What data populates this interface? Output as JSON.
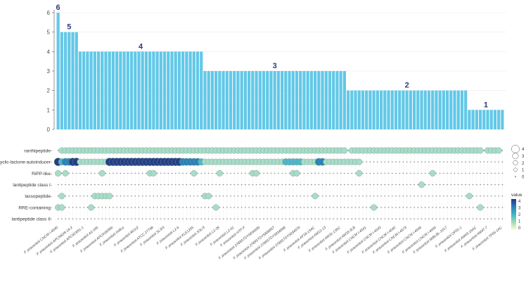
{
  "chart_data": [
    {
      "type": "bar",
      "ylim": [
        0,
        6
      ],
      "yticks": [
        "0",
        "1",
        "2",
        "3",
        "4",
        "5",
        "6"
      ],
      "counts": [
        6,
        5,
        5,
        5,
        5,
        5,
        4,
        4,
        4,
        4,
        4,
        4,
        4,
        4,
        4,
        4,
        4,
        4,
        4,
        4,
        4,
        4,
        4,
        4,
        4,
        4,
        4,
        4,
        4,
        4,
        4,
        4,
        4,
        4,
        4,
        4,
        4,
        4,
        4,
        4,
        3,
        3,
        3,
        3,
        3,
        3,
        3,
        3,
        3,
        3,
        3,
        3,
        3,
        3,
        3,
        3,
        3,
        3,
        3,
        3,
        3,
        3,
        3,
        3,
        3,
        3,
        3,
        3,
        3,
        3,
        3,
        3,
        3,
        3,
        3,
        3,
        3,
        3,
        3,
        2,
        2,
        2,
        2,
        2,
        2,
        2,
        2,
        2,
        2,
        2,
        2,
        2,
        2,
        2,
        2,
        2,
        2,
        2,
        2,
        2,
        2,
        2,
        2,
        2,
        2,
        2,
        2,
        2,
        2,
        2,
        2,
        2,
        1,
        1,
        1,
        1,
        1,
        1,
        1,
        1,
        1,
        1
      ],
      "group_labels": [
        {
          "text": "6",
          "value": 6,
          "first": 0,
          "last": 0
        },
        {
          "text": "5",
          "value": 5,
          "first": 1,
          "last": 5
        },
        {
          "text": "4",
          "value": 4,
          "first": 6,
          "last": 39
        },
        {
          "text": "3",
          "value": 3,
          "first": 40,
          "last": 78
        },
        {
          "text": "2",
          "value": 2,
          "first": 79,
          "last": 111
        },
        {
          "text": "1",
          "value": 1,
          "first": 112,
          "last": 121
        }
      ],
      "bar_color": "#62c8e8"
    },
    {
      "type": "heatmap",
      "rows": [
        "ranthipeptide",
        "cyclic-lactone-autoinducer",
        "RiPP-like",
        "lantipeptide class I",
        "lassopeptide",
        "RRE-containing",
        "lantipeptide class II"
      ],
      "cells": [
        [
          0,
          1,
          1,
          1,
          1,
          1,
          1,
          1,
          1,
          1,
          1,
          1,
          1,
          1,
          1,
          1,
          1,
          1,
          1,
          1,
          1,
          1,
          1,
          1,
          1,
          1,
          1,
          1,
          1,
          1,
          1,
          1,
          1,
          1,
          1,
          1,
          1,
          1,
          1,
          1,
          1,
          1,
          1,
          1,
          1,
          1,
          1,
          1,
          1,
          1,
          1,
          1,
          1,
          1,
          1,
          1,
          1,
          1,
          1,
          1,
          1,
          1,
          1,
          1,
          1,
          1,
          1,
          1,
          1,
          1,
          1,
          1,
          1,
          1,
          1,
          1,
          1,
          1,
          1,
          0,
          1,
          1,
          1,
          1,
          1,
          1,
          1,
          1,
          1,
          1,
          1,
          1,
          1,
          1,
          1,
          1,
          1,
          1,
          1,
          1,
          1,
          1,
          1,
          1,
          1,
          1,
          1,
          1,
          1,
          1,
          1,
          1,
          1,
          1,
          1,
          1,
          0,
          1,
          1,
          1,
          1,
          0
        ],
        [
          4,
          2,
          3,
          3,
          4,
          4,
          1,
          1,
          1,
          1,
          1,
          1,
          1,
          1,
          4,
          4,
          4,
          4,
          4,
          4,
          4,
          4,
          4,
          4,
          4,
          4,
          4,
          4,
          4,
          4,
          4,
          4,
          4,
          4,
          3,
          3,
          3,
          3,
          3,
          2,
          1,
          1,
          1,
          1,
          1,
          1,
          1,
          1,
          1,
          1,
          1,
          1,
          1,
          1,
          1,
          1,
          1,
          1,
          1,
          1,
          1,
          1,
          2,
          2,
          2,
          2,
          2,
          1,
          1,
          1,
          1,
          3,
          3,
          1,
          1,
          1,
          1,
          1,
          1,
          1,
          1,
          1,
          1,
          0,
          0,
          0,
          0,
          0,
          0,
          0,
          0,
          0,
          0,
          0,
          0,
          0,
          0,
          0,
          0,
          0,
          0,
          0,
          0,
          0,
          0,
          0,
          0,
          0,
          0,
          0,
          0,
          0,
          0,
          0,
          0,
          0,
          0,
          0,
          0,
          0,
          0,
          0
        ],
        [
          1,
          0,
          1,
          0,
          0,
          0,
          0,
          0,
          0,
          0,
          0,
          0,
          1,
          0,
          0,
          0,
          0,
          0,
          0,
          0,
          0,
          0,
          0,
          0,
          0,
          1,
          1,
          0,
          0,
          0,
          0,
          0,
          0,
          0,
          0,
          0,
          0,
          1,
          0,
          0,
          0,
          0,
          0,
          0,
          1,
          0,
          0,
          0,
          0,
          0,
          0,
          0,
          0,
          1,
          1,
          0,
          0,
          0,
          0,
          0,
          0,
          0,
          0,
          0,
          1,
          1,
          0,
          0,
          0,
          0,
          0,
          0,
          0,
          0,
          0,
          0,
          0,
          0,
          0,
          0,
          0,
          0,
          1,
          0,
          0,
          0,
          0,
          0,
          0,
          0,
          0,
          0,
          0,
          0,
          0,
          0,
          0,
          0,
          0,
          0,
          0,
          0,
          1,
          0,
          0,
          0,
          0,
          0,
          0,
          0,
          0,
          0,
          0,
          0,
          0,
          0,
          0,
          0,
          0,
          0,
          0,
          0
        ],
        [
          0,
          0,
          0,
          0,
          0,
          0,
          0,
          0,
          0,
          0,
          0,
          0,
          0,
          0,
          0,
          0,
          0,
          0,
          0,
          0,
          0,
          0,
          0,
          0,
          0,
          0,
          0,
          0,
          0,
          0,
          0,
          0,
          0,
          0,
          0,
          0,
          0,
          0,
          0,
          0,
          0,
          0,
          0,
          0,
          0,
          0,
          0,
          0,
          0,
          0,
          0,
          0,
          0,
          0,
          0,
          0,
          0,
          0,
          0,
          0,
          0,
          0,
          0,
          0,
          0,
          0,
          0,
          0,
          0,
          0,
          0,
          0,
          0,
          0,
          0,
          0,
          0,
          0,
          0,
          0,
          0,
          0,
          0,
          0,
          0,
          0,
          0,
          0,
          0,
          0,
          0,
          0,
          0,
          0,
          0,
          0,
          0,
          0,
          0,
          1,
          0,
          0,
          0,
          0,
          0,
          0,
          0,
          0,
          0,
          0,
          0,
          0,
          0,
          0,
          0,
          0,
          0,
          0,
          0,
          0,
          0,
          0
        ],
        [
          0,
          1,
          0,
          0,
          0,
          0,
          0,
          0,
          0,
          0,
          1,
          1,
          1,
          1,
          1,
          0,
          0,
          0,
          0,
          0,
          0,
          0,
          0,
          0,
          0,
          0,
          0,
          0,
          0,
          0,
          0,
          0,
          0,
          0,
          0,
          0,
          0,
          0,
          0,
          0,
          1,
          1,
          0,
          0,
          0,
          0,
          0,
          0,
          0,
          0,
          0,
          0,
          0,
          0,
          0,
          0,
          0,
          0,
          0,
          0,
          0,
          0,
          0,
          0,
          0,
          0,
          0,
          0,
          0,
          0,
          1,
          0,
          0,
          0,
          0,
          0,
          0,
          0,
          0,
          0,
          0,
          0,
          0,
          0,
          0,
          0,
          0,
          0,
          0,
          0,
          0,
          0,
          0,
          0,
          0,
          0,
          0,
          0,
          0,
          0,
          0,
          0,
          0,
          0,
          0,
          0,
          0,
          0,
          0,
          0,
          0,
          0,
          1,
          0,
          0,
          0,
          0,
          0,
          0,
          0,
          0,
          0
        ],
        [
          1,
          1,
          0,
          0,
          0,
          0,
          0,
          0,
          0,
          1,
          0,
          0,
          0,
          0,
          0,
          0,
          0,
          0,
          0,
          0,
          0,
          0,
          0,
          0,
          0,
          0,
          0,
          0,
          0,
          0,
          0,
          0,
          0,
          0,
          0,
          0,
          0,
          0,
          0,
          0,
          0,
          0,
          0,
          1,
          0,
          0,
          0,
          0,
          0,
          0,
          0,
          0,
          0,
          0,
          0,
          0,
          0,
          0,
          0,
          0,
          0,
          0,
          0,
          0,
          0,
          0,
          0,
          0,
          0,
          0,
          0,
          0,
          0,
          0,
          0,
          0,
          0,
          0,
          0,
          0,
          0,
          0,
          0,
          0,
          0,
          0,
          1,
          0,
          0,
          0,
          0,
          0,
          0,
          0,
          0,
          0,
          0,
          0,
          0,
          0,
          0,
          0,
          0,
          0,
          0,
          0,
          0,
          0,
          0,
          0,
          0,
          0,
          0,
          0,
          0,
          1,
          0,
          0,
          0,
          0,
          0,
          0
        ],
        [
          0,
          0,
          0,
          0,
          0,
          0,
          0,
          0,
          0,
          0,
          0,
          0,
          0,
          0,
          0,
          0,
          0,
          0,
          0,
          0,
          0,
          0,
          0,
          0,
          0,
          0,
          0,
          0,
          0,
          0,
          0,
          0,
          0,
          0,
          0,
          0,
          0,
          0,
          0,
          0,
          0,
          0,
          0,
          0,
          0,
          0,
          0,
          0,
          0,
          0,
          0,
          0,
          0,
          0,
          0,
          0,
          0,
          0,
          0,
          0,
          0,
          0,
          0,
          0,
          0,
          0,
          0,
          0,
          0,
          0,
          0,
          0,
          0,
          0,
          0,
          0,
          0,
          0,
          0,
          0,
          0,
          0,
          0,
          0,
          0,
          0,
          0,
          0,
          0,
          0,
          0,
          0,
          0,
          0,
          0,
          0,
          0,
          0,
          0,
          0,
          0,
          0,
          0,
          0,
          0,
          0,
          0,
          0,
          0,
          0,
          0,
          0,
          0,
          0,
          0,
          0,
          0,
          0,
          0,
          0,
          0,
          0
        ]
      ],
      "size_legend": {
        "levels": [
          "4",
          "3",
          "2",
          "1",
          "0"
        ]
      },
      "color_legend": {
        "title": "value",
        "ticks": [
          "4",
          "3",
          "2",
          "1",
          "0"
        ],
        "colors": [
          "#253494",
          "#2c7fb8",
          "#41b6c4",
          "#a1dab4",
          "#ffffcc"
        ]
      }
    }
  ],
  "x_labels_visible": [
    "F. prausnitzii CNCM I-4540",
    "F. prausnitzii APC942/8-14-2",
    "F. prausnitzii APC923/61-1",
    "F. prausnitzii A2-165",
    "F. prausnitzii APC918/95b",
    "F. prausnitzii Indica",
    "F. prausnitzii M21/2",
    "F. prausnitzii ATCC 27768",
    "F. prausnitzii SL3/3",
    "F. prausnitzii L2-6",
    "F. prausnitzii KLE1255",
    "F. prausnitzii S3L/3",
    "F. prausnitzii L2-39",
    "F. prausnitzii L2-61",
    "F. prausnitzii HTF-F",
    "F. prausnitzii 2789STDY5834930",
    "F. prausnitzii 2789STDY5608857",
    "F. prausnitzii 2789STDY5834868",
    "F. prausnitzii 2789STDY5834970",
    "F. prausnitzii AF18-13AC",
    "F. prausnitzii AM12-13",
    "F. prausnitzii AM31-13AC",
    "F. prausnitzii AM33-3LB",
    "F. prausnitzii CNCM I-4541",
    "F. prausnitzii CNCM I-4543",
    "F. prausnitzii CNCM I-4542",
    "F. prausnitzii CNCM I-4573",
    "F. prausnitzii CNCM I-4546",
    "F. prausnitzii CNCM I-4644",
    "F. prausnitzii MIBLBL-1017",
    "F. prausnitzii OF01-1",
    "F. prausnitzii AM43-16AC",
    "F. prausnitzii AM47-7",
    "F. prausnitzii TF05-1AC"
  ]
}
